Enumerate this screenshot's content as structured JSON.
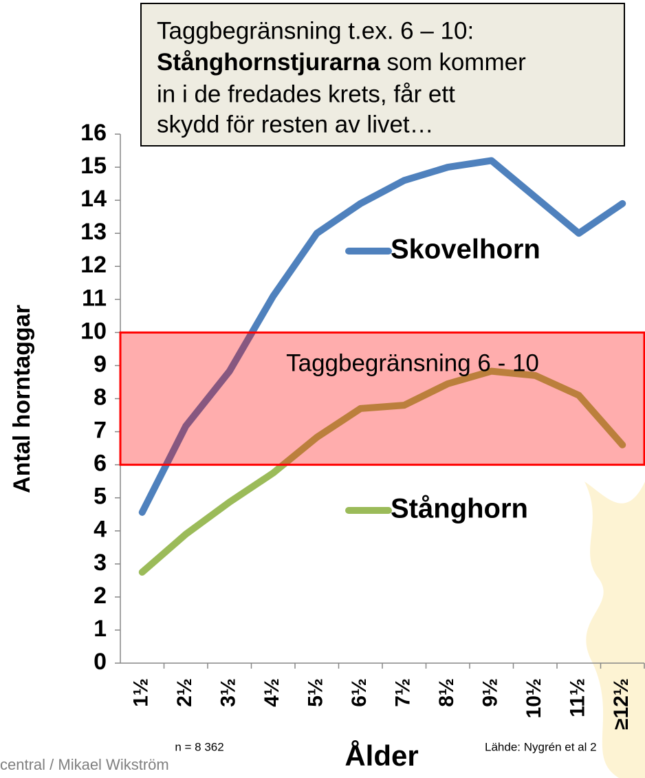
{
  "chart_data": {
    "type": "line",
    "annotation": {
      "line_1": "Taggbegränsning t.ex. 6 – 10:",
      "bold": "Stånghornstjurarna",
      "line_2_rest": " som kommer",
      "line_3": "in i de fredades krets, får ett",
      "line_4": "skydd för resten av livet…"
    },
    "y_label": "Antal horntaggar",
    "x_label": "Ålder",
    "categories": [
      "1½",
      "2½",
      "3½",
      "4½",
      "5½",
      "6½",
      "7½",
      "8½",
      "9½",
      "10½",
      "11½",
      "≥12½"
    ],
    "series": [
      {
        "name": "Skovelhorn",
        "color": "#4f81bd",
        "values": [
          4.56,
          7.17,
          8.83,
          11.1,
          13.0,
          13.9,
          14.6,
          15.0,
          15.2,
          14.1,
          13.0,
          13.9
        ]
      },
      {
        "name": "Stånghorn",
        "color": "#9bbb59",
        "values": [
          2.75,
          3.9,
          4.87,
          5.75,
          6.83,
          7.7,
          7.8,
          8.45,
          8.83,
          8.7,
          8.1,
          6.6
        ]
      }
    ],
    "band": {
      "label": "Taggbegränsning 6 - 10",
      "range": [
        6,
        10
      ],
      "color": "#ff0000"
    },
    "ylim": [
      0,
      16
    ],
    "yticks": [
      0,
      1,
      2,
      3,
      4,
      5,
      6,
      7,
      8,
      9,
      10,
      11,
      12,
      13,
      14,
      15,
      16
    ],
    "note": "n = 8 362",
    "source": "Lähde: Nygrén et al 2",
    "credit": "central / Mikael Wikström"
  }
}
